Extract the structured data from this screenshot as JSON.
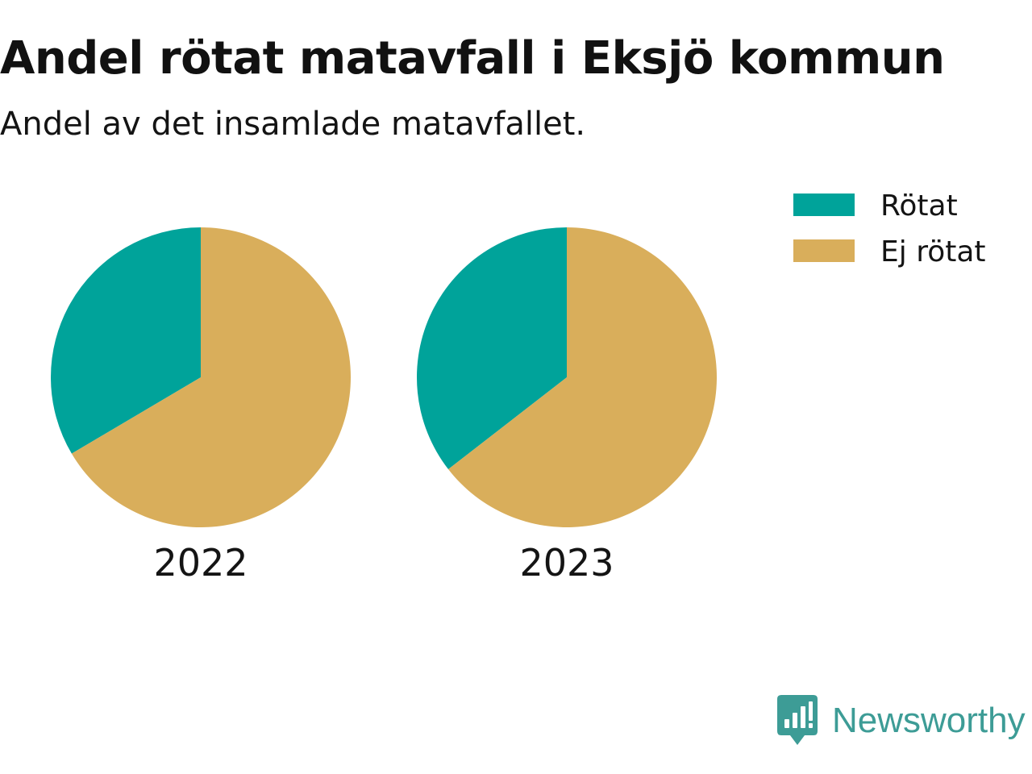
{
  "header": {
    "title": "Andel rötat matavfall i Eksjö kommun",
    "subtitle": "Andel av det insamlade matavfallet."
  },
  "chart_data": {
    "type": "pie",
    "title": "Andel rötat matavfall i Eksjö kommun",
    "subtitle": "Andel av det insamlade matavfallet.",
    "legend_position": "top-right",
    "categories": [
      "Rötat",
      "Ej rötat"
    ],
    "colors": [
      "#00a39a",
      "#d9ae5b"
    ],
    "series": [
      {
        "name": "2022",
        "values": [
          33.5,
          66.5
        ]
      },
      {
        "name": "2023",
        "values": [
          35.5,
          64.5
        ]
      }
    ]
  },
  "brand": {
    "name": "Newsworthy",
    "logo_icon": "newsworthy-logo-icon",
    "color": "#3d9c96"
  }
}
